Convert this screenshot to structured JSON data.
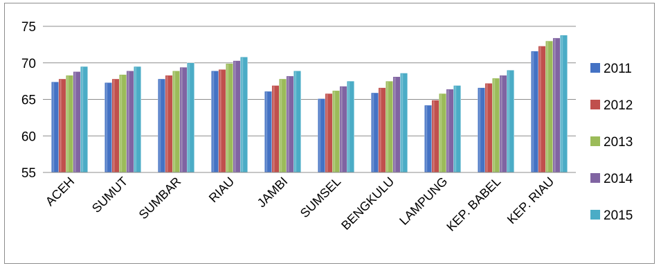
{
  "chart_data": {
    "type": "bar",
    "categories": [
      "ACEH",
      "SUMUT",
      "SUMBAR",
      "RIAU",
      "JAMBI",
      "SUMSEL",
      "BENGKULU",
      "LAMPUNG",
      "KEP. BABEL",
      "KEP. RIAU"
    ],
    "series": [
      {
        "name": "2011",
        "color": "#4472c4",
        "values": [
          67.4,
          67.3,
          67.8,
          68.9,
          66.1,
          65.1,
          65.9,
          64.2,
          66.6,
          71.6
        ]
      },
      {
        "name": "2012",
        "color": "#c0504d",
        "values": [
          67.8,
          67.8,
          68.3,
          69.1,
          66.9,
          65.8,
          66.6,
          64.9,
          67.2,
          72.3
        ]
      },
      {
        "name": "2013",
        "color": "#9bbb59",
        "values": [
          68.3,
          68.4,
          68.9,
          69.9,
          67.8,
          66.2,
          67.5,
          65.8,
          67.9,
          73.0
        ]
      },
      {
        "name": "2014",
        "color": "#8064a2",
        "values": [
          68.8,
          68.9,
          69.4,
          70.3,
          68.2,
          66.8,
          68.1,
          66.4,
          68.3,
          73.4
        ]
      },
      {
        "name": "2015",
        "color": "#4bacc6",
        "values": [
          69.5,
          69.5,
          70.0,
          70.8,
          68.9,
          67.5,
          68.6,
          66.9,
          69.0,
          73.8
        ]
      }
    ],
    "yticks": [
      "55",
      "60",
      "65",
      "70",
      "75"
    ],
    "ylim": [
      55,
      75
    ],
    "grid": true,
    "legend": "right"
  }
}
